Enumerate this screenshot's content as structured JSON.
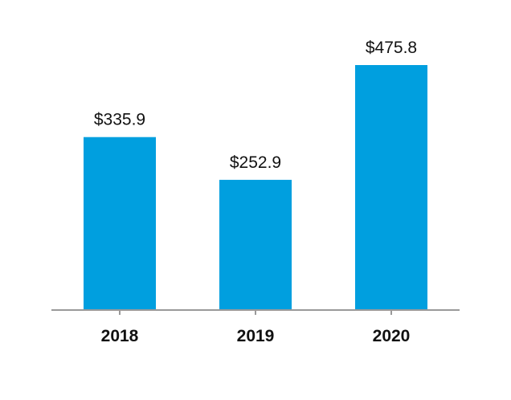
{
  "chart_data": {
    "type": "bar",
    "title": "",
    "xlabel": "",
    "ylabel": "",
    "categories": [
      "2018",
      "2019",
      "2020"
    ],
    "values": [
      335.9,
      252.9,
      475.8
    ],
    "data_labels": [
      "$335.9",
      "$252.9",
      "$475.8"
    ],
    "ylim": [
      0,
      500
    ],
    "grid": false,
    "legend": "none",
    "colors": {
      "bar": "#009FDF",
      "axis": "#9A9A9A",
      "text": "#111111"
    }
  }
}
